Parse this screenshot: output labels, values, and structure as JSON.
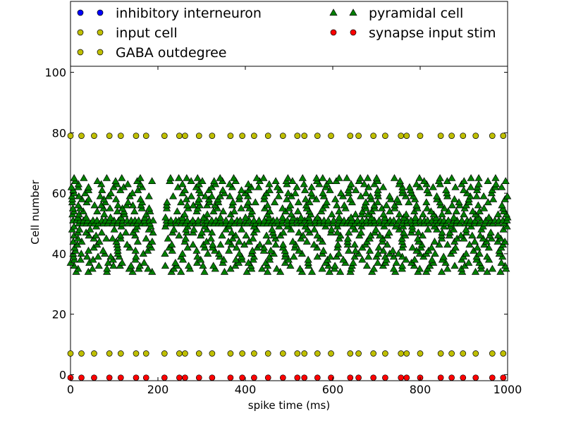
{
  "chart_data": {
    "type": "scatter",
    "xlabel": "spike time (ms)",
    "ylabel": "Cell number",
    "xlim": [
      0,
      1000
    ],
    "ylim": [
      -2,
      102
    ],
    "xticks": [
      0,
      200,
      400,
      600,
      800,
      1000
    ],
    "yticks": [
      0,
      20,
      40,
      60,
      80,
      100
    ],
    "grid": false,
    "legend_placement": "top, above plot, two columns",
    "series": [
      {
        "name": "inhibitory interneuron",
        "marker": "circle",
        "color": "#0000ff",
        "points": []
      },
      {
        "name": "input cell",
        "marker": "circle",
        "color": "#bfbf00",
        "y": 7,
        "times": [
          0,
          25,
          54,
          89,
          115,
          150,
          173,
          215,
          249,
          262,
          294,
          324,
          366,
          393,
          420,
          452,
          486,
          519,
          535,
          565,
          596,
          640,
          659,
          693,
          720,
          756,
          769,
          800,
          847,
          872,
          898,
          927,
          965,
          990
        ]
      },
      {
        "name": "GABA outdegree",
        "marker": "circle",
        "color": "#bfbf00",
        "y": 79,
        "times": [
          0,
          25,
          54,
          89,
          115,
          150,
          173,
          215,
          249,
          262,
          294,
          324,
          366,
          393,
          420,
          452,
          486,
          519,
          535,
          565,
          596,
          640,
          659,
          693,
          720,
          756,
          769,
          800,
          847,
          872,
          898,
          927,
          965,
          990
        ]
      },
      {
        "name": "pyramidal cell",
        "marker": "triangle",
        "color": "#008000",
        "cells_y_range": [
          34,
          65
        ],
        "time_range_ms": [
          0,
          1000
        ],
        "sparse_window_ms": [
          190,
          215
        ],
        "dense_row_y": [
          50,
          51
        ],
        "note_points": "dense raster; approximately 20-30 spikes per cell across the run"
      },
      {
        "name": "synapse input stim",
        "marker": "circle",
        "color": "#ff0000",
        "y": -1,
        "times": [
          0,
          25,
          54,
          89,
          115,
          150,
          173,
          215,
          249,
          262,
          294,
          324,
          366,
          393,
          420,
          452,
          486,
          519,
          535,
          565,
          596,
          640,
          659,
          693,
          720,
          756,
          769,
          800,
          847,
          872,
          898,
          927,
          965,
          990
        ]
      }
    ]
  }
}
